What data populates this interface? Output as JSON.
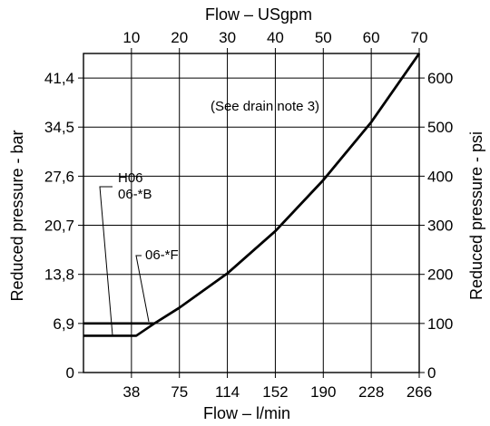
{
  "chart_data": {
    "type": "line",
    "title": "",
    "x_bottom": {
      "label": "Flow – l/min",
      "ticks": [
        "38",
        "75",
        "114",
        "152",
        "190",
        "228",
        "266"
      ],
      "lim": [
        0,
        266
      ]
    },
    "x_top": {
      "label": "Flow – USgpm",
      "ticks": [
        "10",
        "20",
        "30",
        "40",
        "50",
        "60",
        "70"
      ],
      "lim": [
        0,
        70
      ]
    },
    "y_left": {
      "label": "Reduced pressure - bar",
      "ticks": [
        "0",
        "6,9",
        "13,8",
        "20,7",
        "27,6",
        "34,5",
        "41,4"
      ],
      "lim": [
        0,
        44.8
      ]
    },
    "y_right": {
      "label": "Reduced pressure - psi",
      "ticks": [
        "0",
        "100",
        "200",
        "300",
        "400",
        "500",
        "600"
      ],
      "lim": [
        0,
        650
      ]
    },
    "grid": true,
    "annotations": [
      "(See drain note 3)"
    ],
    "series": [
      {
        "name": "06-*F",
        "points": [
          [
            0,
            100
          ],
          [
            14.8,
            100
          ],
          [
            20,
            132
          ],
          [
            30,
            202
          ],
          [
            40,
            288
          ],
          [
            50,
            392
          ],
          [
            60,
            510
          ],
          [
            70,
            650
          ]
        ]
      },
      {
        "name": "H06 06-*B",
        "points": [
          [
            0,
            75
          ],
          [
            11,
            75
          ],
          [
            14.8,
            100
          ],
          [
            20,
            132
          ],
          [
            30,
            202
          ],
          [
            40,
            288
          ],
          [
            50,
            392
          ],
          [
            60,
            510
          ],
          [
            70,
            650
          ]
        ]
      }
    ]
  }
}
